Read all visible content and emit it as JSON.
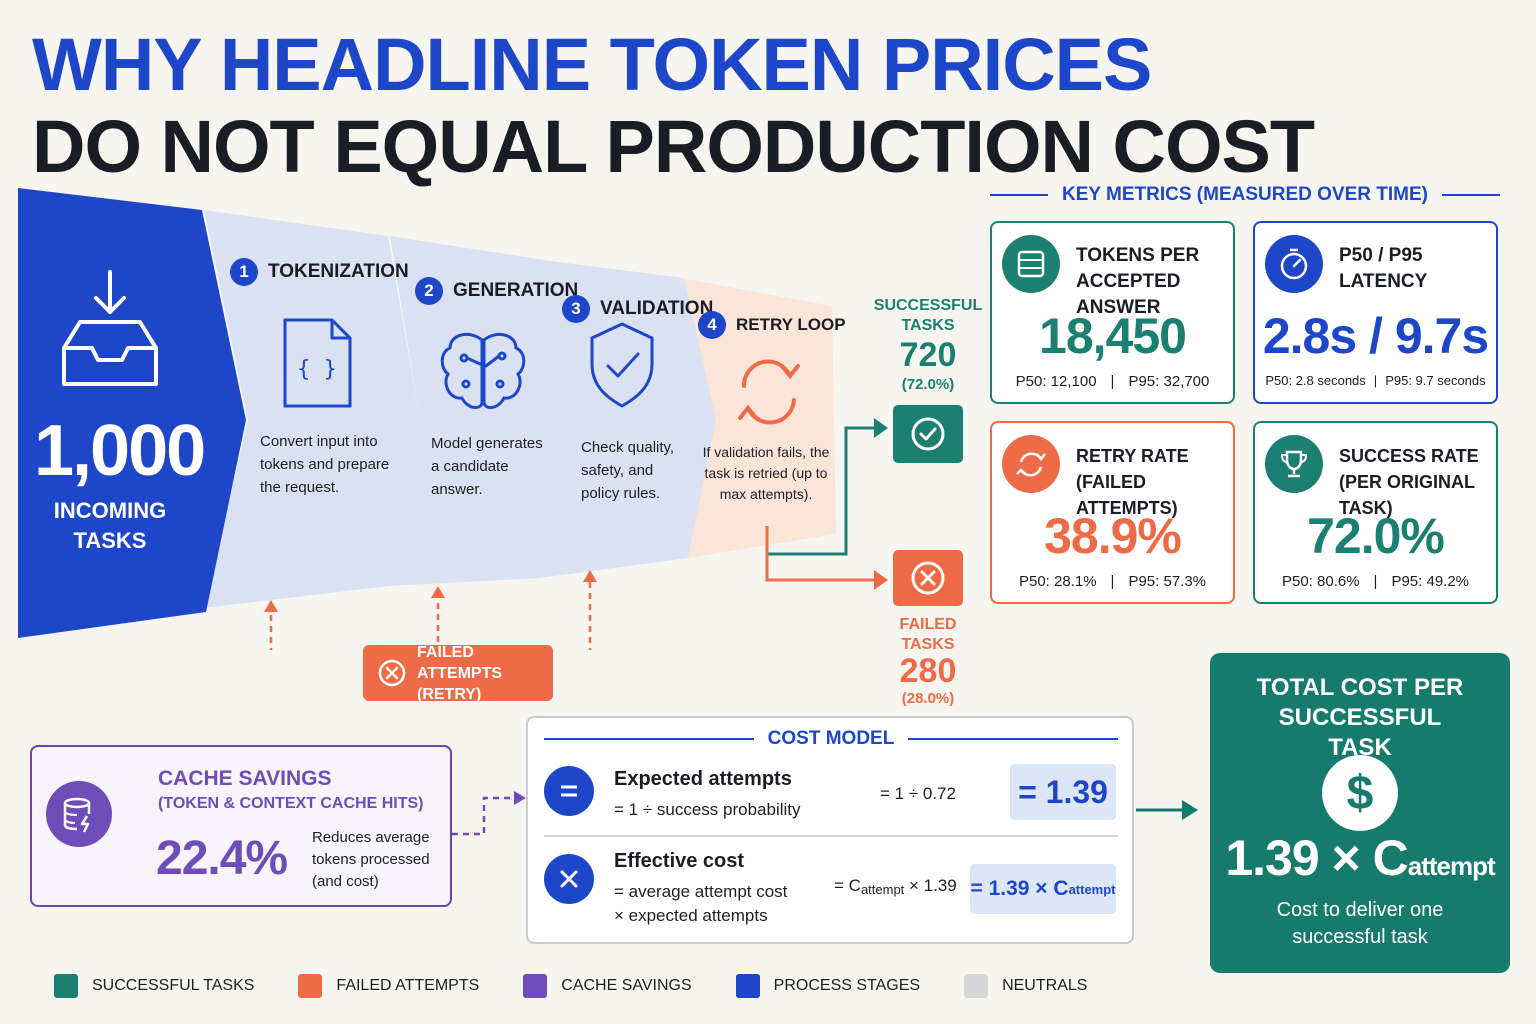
{
  "title": {
    "line1": "WHY HEADLINE TOKEN PRICES",
    "line2": "DO NOT EQUAL PRODUCTION COST"
  },
  "incoming": {
    "value": "1,000",
    "label": "INCOMING TASKS"
  },
  "stages": [
    {
      "number": "1",
      "name": "TOKENIZATION",
      "description": "Convert input into tokens and prepare the request.",
      "icon": "document-code-icon"
    },
    {
      "number": "2",
      "name": "GENERATION",
      "description": "Model generates a candidate answer.",
      "icon": "brain-circuit-icon"
    },
    {
      "number": "3",
      "name": "VALIDATION",
      "description": "Check quality, safety, and policy rules.",
      "icon": "shield-check-icon"
    },
    {
      "number": "4",
      "name": "RETRY LOOP",
      "description": "If validation fails, the task is retried (up to max attempts).",
      "icon": "retry-icon"
    }
  ],
  "outcomes": {
    "successful": {
      "label": "SUCCESSFUL TASKS",
      "value": "720",
      "pct": "(72.0%)",
      "icon": "check-circle-icon"
    },
    "failed": {
      "label": "FAILED TASKS",
      "value": "280",
      "pct": "(28.0%)",
      "icon": "x-circle-icon"
    }
  },
  "failed_attempts": {
    "label": "FAILED ATTEMPTS (RETRY)",
    "icon": "x-circle-icon"
  },
  "key_metrics": {
    "title": "KEY METRICS (MEASURED OVER TIME)",
    "cards": [
      {
        "label": "TOKENS PER ACCEPTED ANSWER",
        "value": "18,450",
        "p50": "P50: 12,100",
        "p95": "P95: 32,700",
        "icon": "token-stack-icon",
        "color": "#1b7f72"
      },
      {
        "label": "P50 / P95 LATENCY",
        "value": "2.8s / 9.7s",
        "p50": "P50: 2.8 seconds",
        "p95": "P95: 9.7 seconds",
        "icon": "stopwatch-icon",
        "color": "#1d47c8"
      },
      {
        "label": "RETRY RATE (FAILED ATTEMPTS)",
        "value": "38.9%",
        "p50": "P50: 28.1%",
        "p95": "P95: 57.3%",
        "icon": "retry-icon",
        "color": "#ef6a47"
      },
      {
        "label": "SUCCESS RATE (PER ORIGINAL TASK)",
        "value": "72.0%",
        "p50": "P50: 80.6%",
        "p95": "P95: 49.2%",
        "icon": "trophy-icon",
        "color": "#1b7f72"
      }
    ]
  },
  "cache": {
    "title": "CACHE SAVINGS",
    "subtitle": "(TOKEN & CONTEXT CACHE HITS)",
    "value": "22.4%",
    "description": "Reduces average tokens processed (and cost)",
    "icon": "database-bolt-icon"
  },
  "cost_model": {
    "title": "COST MODEL",
    "rows": [
      {
        "title": "Expected attempts",
        "formula": "= 1 ÷ success probability",
        "calc": "= 1 ÷ 0.72",
        "result": "= 1.39",
        "icon": "equals-icon"
      },
      {
        "title": "Effective cost",
        "formula": "= average attempt cost",
        "formula2": "× expected attempts",
        "calc_pre": "= C",
        "calc_sub": "attempt",
        "calc_post": " × 1.39",
        "result_pre": "= 1.39 × C",
        "result_sub": "attempt",
        "icon": "multiply-icon"
      }
    ]
  },
  "total": {
    "title": "TOTAL COST PER SUCCESSFUL TASK",
    "value": "1.39 × C",
    "value_sub": "attempt",
    "description": "Cost to deliver one successful task",
    "icon": "dollar-icon"
  },
  "legend": [
    {
      "label": "SUCCESSFUL TASKS",
      "color": "#1b7f72"
    },
    {
      "label": "FAILED ATTEMPTS",
      "color": "#ef6a47"
    },
    {
      "label": "CACHE SAVINGS",
      "color": "#6f4db8"
    },
    {
      "label": "PROCESS STAGES",
      "color": "#1d47c8"
    },
    {
      "label": "NEUTRALS",
      "color": "#d6d6d6"
    }
  ]
}
